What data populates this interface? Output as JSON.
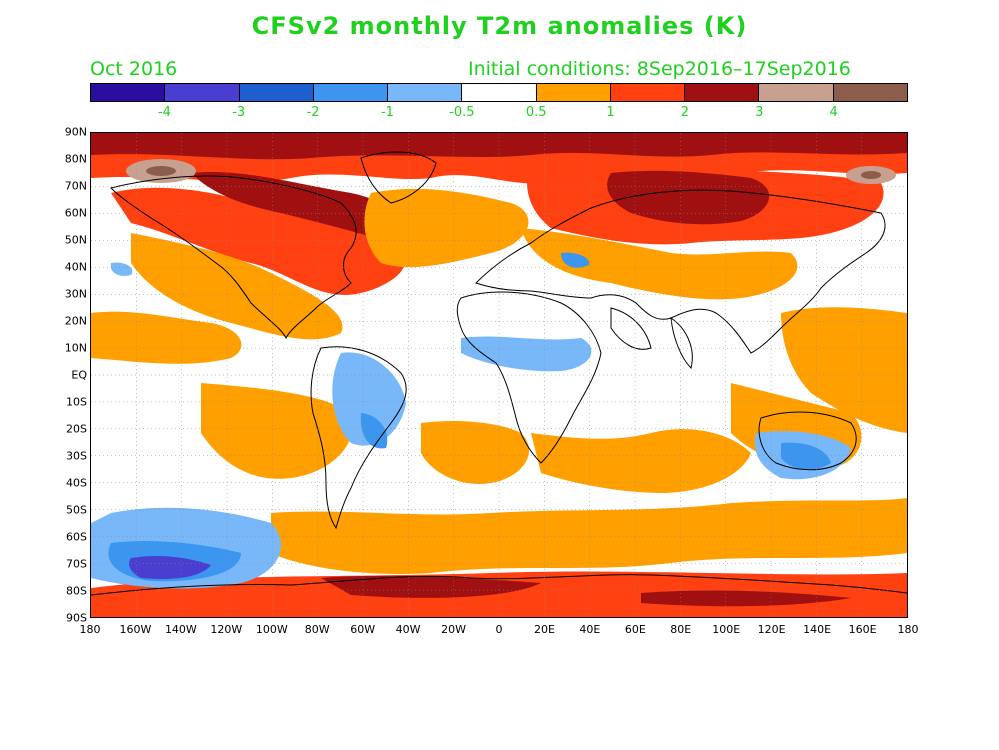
{
  "header": {
    "title": "CFSv2 monthly T2m anomalies (K)",
    "month": "Oct 2016",
    "initial_conditions": "Initial conditions: 8Sep2016–17Sep2016"
  },
  "colorbar": {
    "colors": [
      "#2a0ea0",
      "#4a3ed0",
      "#1e5fd0",
      "#3c96f0",
      "#78b8f8",
      "#ffffff",
      "#ffa000",
      "#ff4010",
      "#a01010",
      "#c8a090",
      "#8c5c4c"
    ],
    "labels": [
      "-4",
      "-3",
      "-2",
      "-1",
      "-0.5",
      "0.5",
      "1",
      "2",
      "3",
      "4"
    ]
  },
  "axes": {
    "lat_labels": [
      "90N",
      "80N",
      "70N",
      "60N",
      "50N",
      "40N",
      "30N",
      "20N",
      "10N",
      "EQ",
      "10S",
      "20S",
      "30S",
      "40S",
      "50S",
      "60S",
      "70S",
      "80S",
      "90S"
    ],
    "lon_labels": [
      "180",
      "160W",
      "140W",
      "120W",
      "100W",
      "80W",
      "60W",
      "40W",
      "20W",
      "0",
      "20E",
      "40E",
      "60E",
      "80E",
      "100E",
      "120E",
      "140E",
      "160E",
      "180"
    ]
  }
}
